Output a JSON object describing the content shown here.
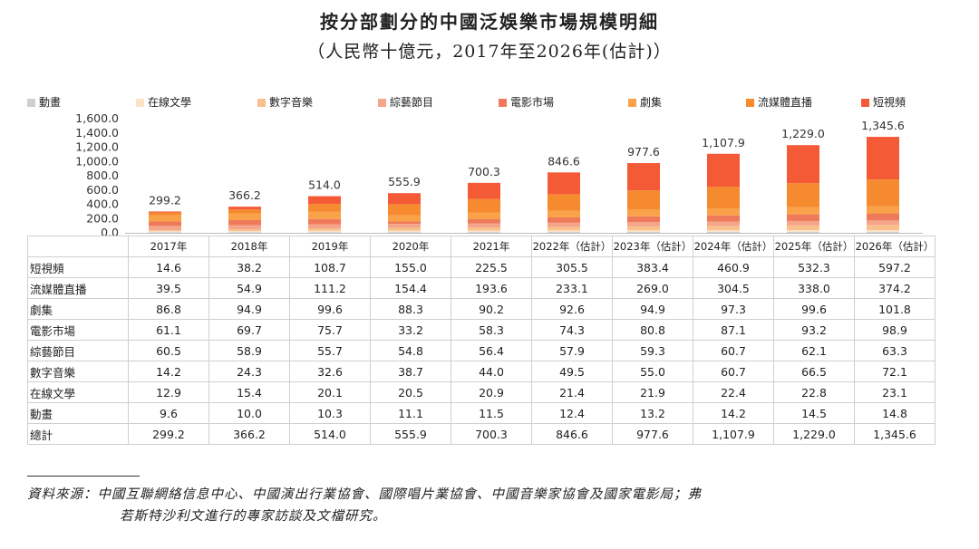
{
  "title": "按分部劃分的中國泛娛樂市場規模明細",
  "subtitle": "（人民幣十億元，2017年至2026年(估計)）",
  "source": {
    "line1": "資料來源：中國互聯網絡信息中心、中國演出行業協會、國際唱片業協會、中國音樂家協會及國家電影局；弗",
    "line2": "若斯特沙利文進行的專家訪談及文檔研究。"
  },
  "chart_data": {
    "type": "bar",
    "stacked": true,
    "categories": [
      "2017年",
      "2018年",
      "2019年",
      "2020年",
      "2021年",
      "2022年（估計）",
      "2023年（估計）",
      "2024年（估計）",
      "2025年（估計）",
      "2026年（估計）"
    ],
    "yticks": [
      "0.0",
      "200.0",
      "400.0",
      "600.0",
      "800.0",
      "1,000.0",
      "1,200.0",
      "1,400.0",
      "1,600.0"
    ],
    "ylim": [
      0,
      1600
    ],
    "legend_position": "top",
    "series": [
      {
        "name": "動畫",
        "color": "#cfcfcf",
        "values": [
          9.6,
          10.0,
          10.3,
          11.1,
          11.5,
          12.4,
          13.2,
          14.2,
          14.5,
          14.8
        ]
      },
      {
        "name": "在線文學",
        "color": "#fbe3c8",
        "values": [
          12.9,
          15.4,
          20.1,
          20.5,
          20.9,
          21.4,
          21.9,
          22.4,
          22.8,
          23.1
        ]
      },
      {
        "name": "數字音樂",
        "color": "#f9c08c",
        "values": [
          14.2,
          24.3,
          32.6,
          38.7,
          44.0,
          49.5,
          55.0,
          60.7,
          66.5,
          72.1
        ]
      },
      {
        "name": "綜藝節目",
        "color": "#f4a58a",
        "values": [
          60.5,
          58.9,
          55.7,
          54.8,
          56.4,
          57.9,
          59.3,
          60.7,
          62.1,
          63.3
        ]
      },
      {
        "name": "電影市場",
        "color": "#ee7a5a",
        "values": [
          61.1,
          69.7,
          75.7,
          33.2,
          58.3,
          74.3,
          80.8,
          87.1,
          93.2,
          98.9
        ]
      },
      {
        "name": "劇集",
        "color": "#f9a24a",
        "values": [
          86.8,
          94.9,
          99.6,
          88.3,
          90.2,
          92.6,
          94.9,
          97.3,
          99.6,
          101.8
        ]
      },
      {
        "name": "流媒體直播",
        "color": "#f58a2e",
        "values": [
          39.5,
          54.9,
          111.2,
          154.4,
          193.6,
          233.1,
          269.0,
          304.5,
          338.0,
          374.2
        ]
      },
      {
        "name": "短視頻",
        "color": "#f45a36",
        "values": [
          14.6,
          38.2,
          108.7,
          155.0,
          225.5,
          305.5,
          383.4,
          460.9,
          532.3,
          597.2
        ]
      }
    ],
    "totals": [
      299.2,
      366.2,
      514.0,
      555.9,
      700.3,
      846.6,
      977.6,
      1107.9,
      1229.0,
      1345.6
    ],
    "total_labels": [
      "299.2",
      "366.2",
      "514.0",
      "555.9",
      "700.3",
      "846.6",
      "977.6",
      "1,107.9",
      "1,229.0",
      "1,345.6"
    ]
  },
  "table": {
    "rows": [
      {
        "label": "短視頻",
        "values": [
          "14.6",
          "38.2",
          "108.7",
          "155.0",
          "225.5",
          "305.5",
          "383.4",
          "460.9",
          "532.3",
          "597.2"
        ]
      },
      {
        "label": "流媒體直播",
        "values": [
          "39.5",
          "54.9",
          "111.2",
          "154.4",
          "193.6",
          "233.1",
          "269.0",
          "304.5",
          "338.0",
          "374.2"
        ]
      },
      {
        "label": "劇集",
        "values": [
          "86.8",
          "94.9",
          "99.6",
          "88.3",
          "90.2",
          "92.6",
          "94.9",
          "97.3",
          "99.6",
          "101.8"
        ]
      },
      {
        "label": "電影市場",
        "values": [
          "61.1",
          "69.7",
          "75.7",
          "33.2",
          "58.3",
          "74.3",
          "80.8",
          "87.1",
          "93.2",
          "98.9"
        ]
      },
      {
        "label": "綜藝節目",
        "values": [
          "60.5",
          "58.9",
          "55.7",
          "54.8",
          "56.4",
          "57.9",
          "59.3",
          "60.7",
          "62.1",
          "63.3"
        ]
      },
      {
        "label": "數字音樂",
        "values": [
          "14.2",
          "24.3",
          "32.6",
          "38.7",
          "44.0",
          "49.5",
          "55.0",
          "60.7",
          "66.5",
          "72.1"
        ]
      },
      {
        "label": "在線文學",
        "values": [
          "12.9",
          "15.4",
          "20.1",
          "20.5",
          "20.9",
          "21.4",
          "21.9",
          "22.4",
          "22.8",
          "23.1"
        ]
      },
      {
        "label": "動畫",
        "values": [
          "9.6",
          "10.0",
          "10.3",
          "11.1",
          "11.5",
          "12.4",
          "13.2",
          "14.2",
          "14.5",
          "14.8"
        ]
      },
      {
        "label": "總計",
        "values": [
          "299.2",
          "366.2",
          "514.0",
          "555.9",
          "700.3",
          "846.6",
          "977.6",
          "1,107.9",
          "1,229.0",
          "1,345.6"
        ]
      }
    ]
  }
}
